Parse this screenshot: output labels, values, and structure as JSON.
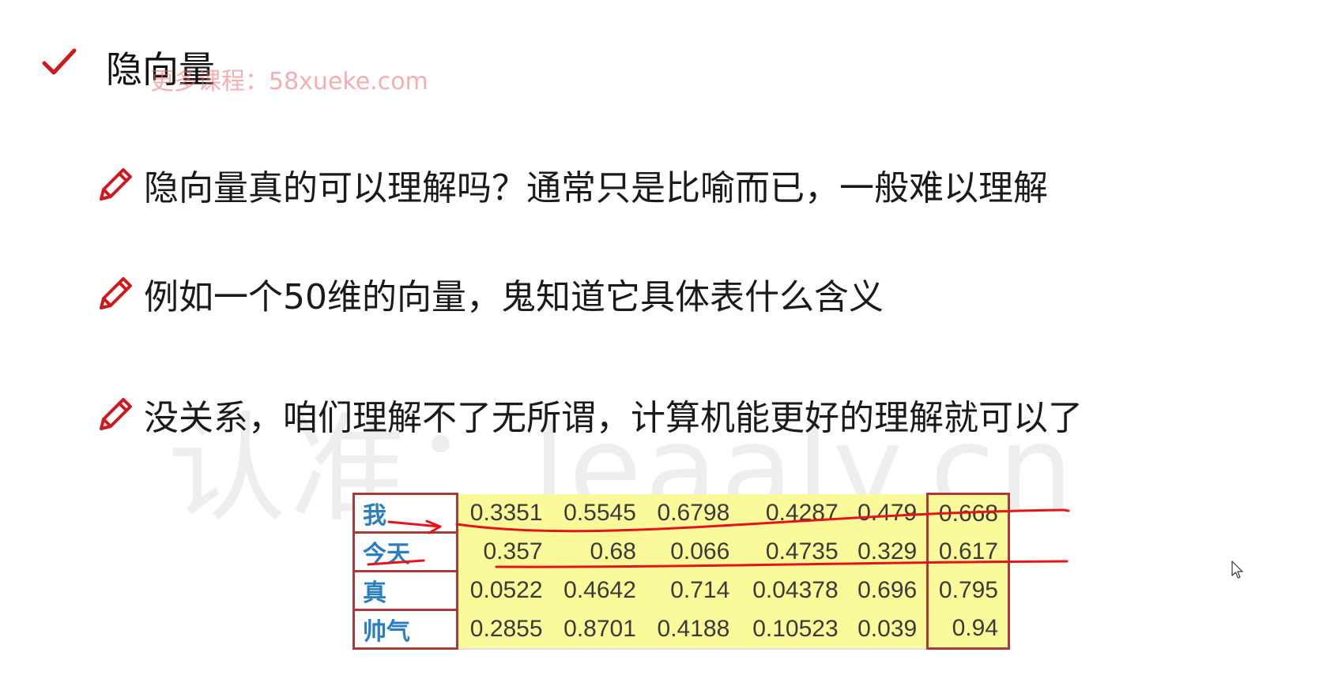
{
  "slide": {
    "title": "隐向量",
    "watermark_top": "更多课程：58xueke.com",
    "watermark_big": "认准：leaaly.cn",
    "bullets": [
      {
        "text": "隐向量真的可以理解吗？通常只是比喻而已，一般难以理解"
      },
      {
        "text": "例如一个50维的向量，鬼知道它具体表什么含义"
      },
      {
        "text": "没关系，咱们理解不了无所谓，计算机能更好的理解就可以了"
      }
    ]
  },
  "matrix": {
    "rows": [
      {
        "word": "我",
        "values": [
          "0.3351",
          "0.5545",
          "0.6798",
          "0.4287",
          "0.479",
          "0.668"
        ]
      },
      {
        "word": "今天",
        "values": [
          "0.357",
          "0.68",
          "0.066",
          "0.4735",
          "0.329",
          "0.617"
        ]
      },
      {
        "word": "真",
        "values": [
          "0.0522",
          "0.4642",
          "0.714",
          "0.04378",
          "0.696",
          "0.795"
        ]
      },
      {
        "word": "帅气",
        "values": [
          "0.2855",
          "0.8701",
          "0.4188",
          "0.10523",
          "0.039",
          "0.94"
        ]
      }
    ]
  },
  "colors": {
    "accent_red": "#d0191f",
    "ink_red": "#e5141a",
    "word_blue": "#2a7fc0",
    "cell_yellow": "#fafa9a",
    "frame_red": "#a83a3a"
  },
  "icons": {
    "title": "check-icon",
    "bullet": "pencil-icon",
    "pointer": "mouse-cursor-icon"
  }
}
